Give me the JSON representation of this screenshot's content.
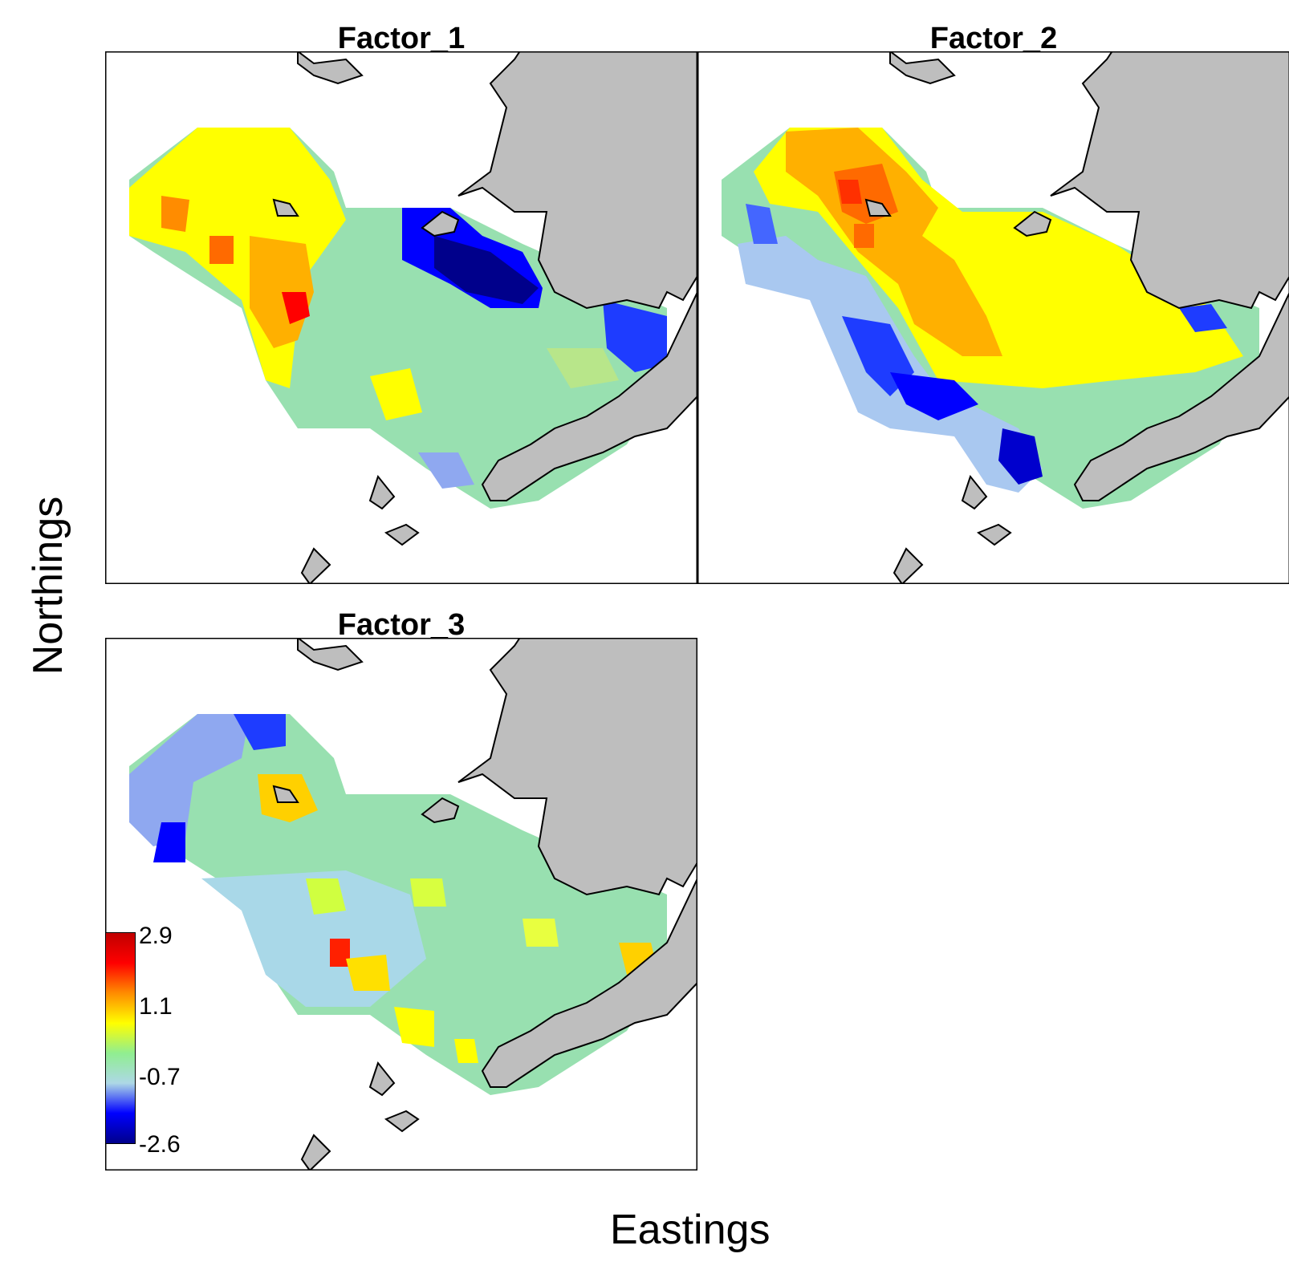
{
  "panels": [
    {
      "title": "Factor_1"
    },
    {
      "title": "Factor_2"
    },
    {
      "title": "Factor_3"
    }
  ],
  "axes": {
    "x_label": "Eastings",
    "y_label": "Northings"
  },
  "legend": {
    "labels": [
      "2.9",
      "1.1",
      "-0.7",
      "-2.6"
    ],
    "color_stops": [
      "#c00000",
      "#ff0000",
      "#ff8c00",
      "#ffff00",
      "#90ee90",
      "#add8e6",
      "#0000ff",
      "#00008b"
    ]
  },
  "colors": {
    "land": "#bebebe",
    "border": "#000000"
  }
}
